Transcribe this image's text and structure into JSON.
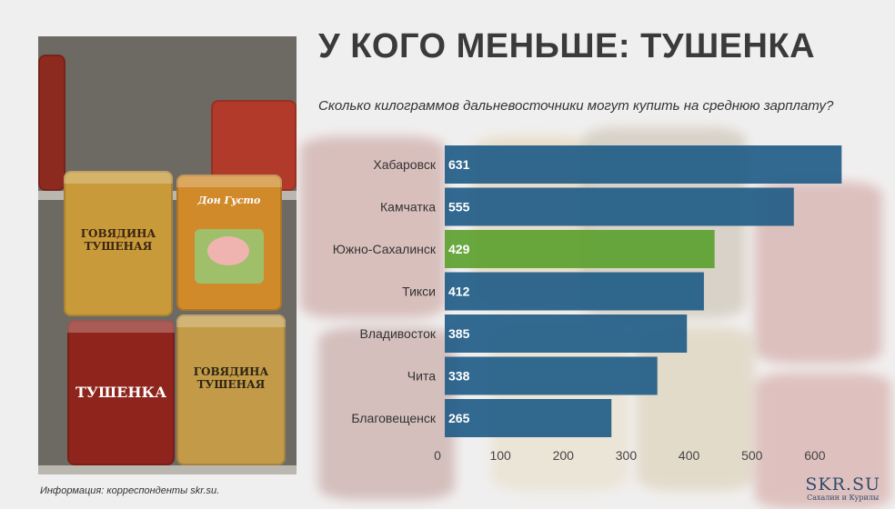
{
  "title": "У КОГО МЕНЬШЕ: ТУШЕНКА",
  "subtitle": "Сколько килограммов дальневосточники могут купить на среднюю зарплату?",
  "source": "Информация: корреспонденты skr.su.",
  "brand": {
    "name": "SKR.SU",
    "tagline": "Сахалин и Курилы"
  },
  "photo_labels": {
    "can1": "ГОВЯДИНА ТУШЕНАЯ",
    "can2": "Дон Густо",
    "can3": "ТУШЕНКА",
    "can4": "ГОВЯДИНА ТУШЕНАЯ"
  },
  "colors": {
    "bar": "#1d5a85",
    "highlight": "#5aa02c",
    "text": "#333333"
  },
  "chart_data": {
    "type": "bar",
    "orientation": "horizontal",
    "categories": [
      "Хабаровск",
      "Камчатка",
      "Южно-Сахалинск",
      "Тикси",
      "Владивосток",
      "Чита",
      "Благовещенск"
    ],
    "values": [
      631,
      555,
      429,
      412,
      385,
      338,
      265
    ],
    "highlight_category": "Южно-Сахалинск",
    "xlim": [
      0,
      650
    ],
    "xticks": [
      0,
      100,
      200,
      300,
      400,
      500,
      600
    ],
    "grid": false
  }
}
